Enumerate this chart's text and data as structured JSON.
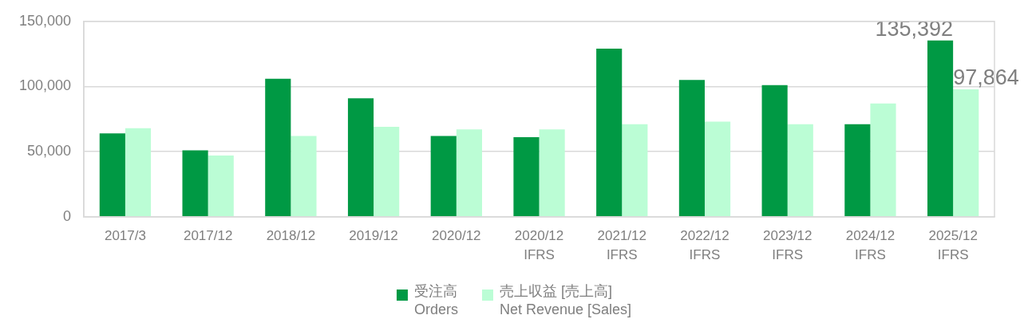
{
  "chart_data": {
    "type": "bar",
    "categories": [
      "2017/3",
      "2017/12",
      "2018/12",
      "2019/12",
      "2020/12",
      "2020/12\nIFRS",
      "2021/12\nIFRS",
      "2022/12\nIFRS",
      "2023/12\nIFRS",
      "2024/12\nIFRS",
      "2025/12\nIFRS"
    ],
    "series": [
      {
        "name": "受注高\nOrders",
        "color": "#009944",
        "values": [
          64000,
          51000,
          106000,
          91000,
          62000,
          61000,
          129000,
          105000,
          101000,
          71000,
          135392
        ],
        "value_labels": [
          null,
          null,
          null,
          null,
          null,
          null,
          null,
          null,
          null,
          null,
          "135,392"
        ]
      },
      {
        "name": "売上収益 [売上高]\nNet Revenue [Sales]",
        "color": "#bbfdd5",
        "values": [
          68000,
          47000,
          62000,
          69000,
          67000,
          67000,
          71000,
          73000,
          71000,
          87000,
          97864
        ],
        "value_labels": [
          null,
          null,
          null,
          null,
          null,
          null,
          null,
          null,
          null,
          null,
          "97,864"
        ]
      }
    ],
    "ylim": [
      0,
      150000
    ],
    "yticks": [
      {
        "value": 0,
        "label": "0"
      },
      {
        "value": 50000,
        "label": "50,000"
      },
      {
        "value": 100000,
        "label": "100,000"
      },
      {
        "value": 150000,
        "label": "150,000"
      }
    ],
    "grid": "y",
    "legend": "bottom"
  }
}
